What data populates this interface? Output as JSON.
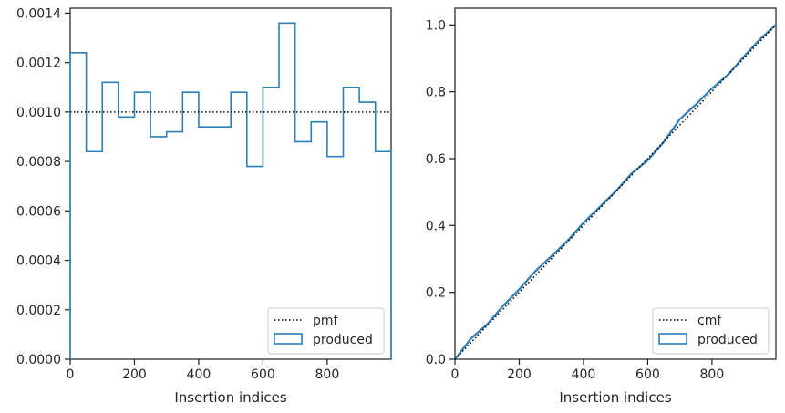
{
  "chart_data": [
    {
      "type": "histogram",
      "xlabel": "Insertion indices",
      "ylabel": "",
      "xlim": [
        0,
        999
      ],
      "ylim": [
        0,
        0.00142
      ],
      "x_ticks": [
        0,
        200,
        400,
        600,
        800
      ],
      "y_ticks": [
        0,
        0.0002,
        0.0004,
        0.0006,
        0.0008,
        0.001,
        0.0012,
        0.0014
      ],
      "y_tick_labels": [
        "0.0000",
        "0.0002",
        "0.0004",
        "0.0006",
        "0.0008",
        "0.0010",
        "0.0012",
        "0.0014"
      ],
      "bin_edges": [
        0,
        50,
        100,
        150,
        200,
        250,
        300,
        350,
        400,
        450,
        500,
        550,
        600,
        650,
        700,
        750,
        800,
        850,
        900,
        950,
        999
      ],
      "values": [
        0.00124,
        0.00084,
        0.00112,
        0.00098,
        0.00108,
        0.0009,
        0.00092,
        0.00108,
        0.00094,
        0.00094,
        0.00108,
        0.00078,
        0.0011,
        0.00136,
        0.00088,
        0.00096,
        0.00082,
        0.0011,
        0.00104,
        0.00084
      ],
      "reference_line": {
        "name": "pmf",
        "y": 0.001,
        "style": "dotted",
        "color": "#000000"
      },
      "series": [
        {
          "name": "produced",
          "color": "#2f7fb5"
        }
      ],
      "legend": {
        "position": "bottom-right",
        "entries": [
          "pmf",
          "produced"
        ]
      },
      "grid": false
    },
    {
      "type": "line",
      "xlabel": "Insertion indices",
      "ylabel": "",
      "xlim": [
        0,
        999
      ],
      "ylim": [
        0,
        1.05
      ],
      "x_ticks": [
        0,
        200,
        400,
        600,
        800
      ],
      "y_ticks": [
        0,
        0.2,
        0.4,
        0.6,
        0.8,
        1.0
      ],
      "y_tick_labels": [
        "0.0",
        "0.2",
        "0.4",
        "0.6",
        "0.8",
        "1.0"
      ],
      "reference_line": {
        "name": "cmf",
        "x": [
          0,
          999
        ],
        "y": [
          0,
          1.0
        ],
        "style": "dotted",
        "color": "#000000"
      },
      "series": [
        {
          "name": "produced",
          "color": "#2f7fb5",
          "x": [
            0,
            50,
            100,
            150,
            200,
            250,
            300,
            350,
            400,
            450,
            500,
            550,
            600,
            650,
            700,
            750,
            800,
            850,
            900,
            950,
            999
          ],
          "y": [
            0,
            0.062,
            0.104,
            0.16,
            0.209,
            0.263,
            0.308,
            0.354,
            0.408,
            0.455,
            0.502,
            0.556,
            0.595,
            0.65,
            0.718,
            0.762,
            0.81,
            0.851,
            0.906,
            0.958,
            1.0
          ]
        }
      ],
      "legend": {
        "position": "bottom-right",
        "entries": [
          "cmf",
          "produced"
        ]
      },
      "grid": false
    }
  ]
}
